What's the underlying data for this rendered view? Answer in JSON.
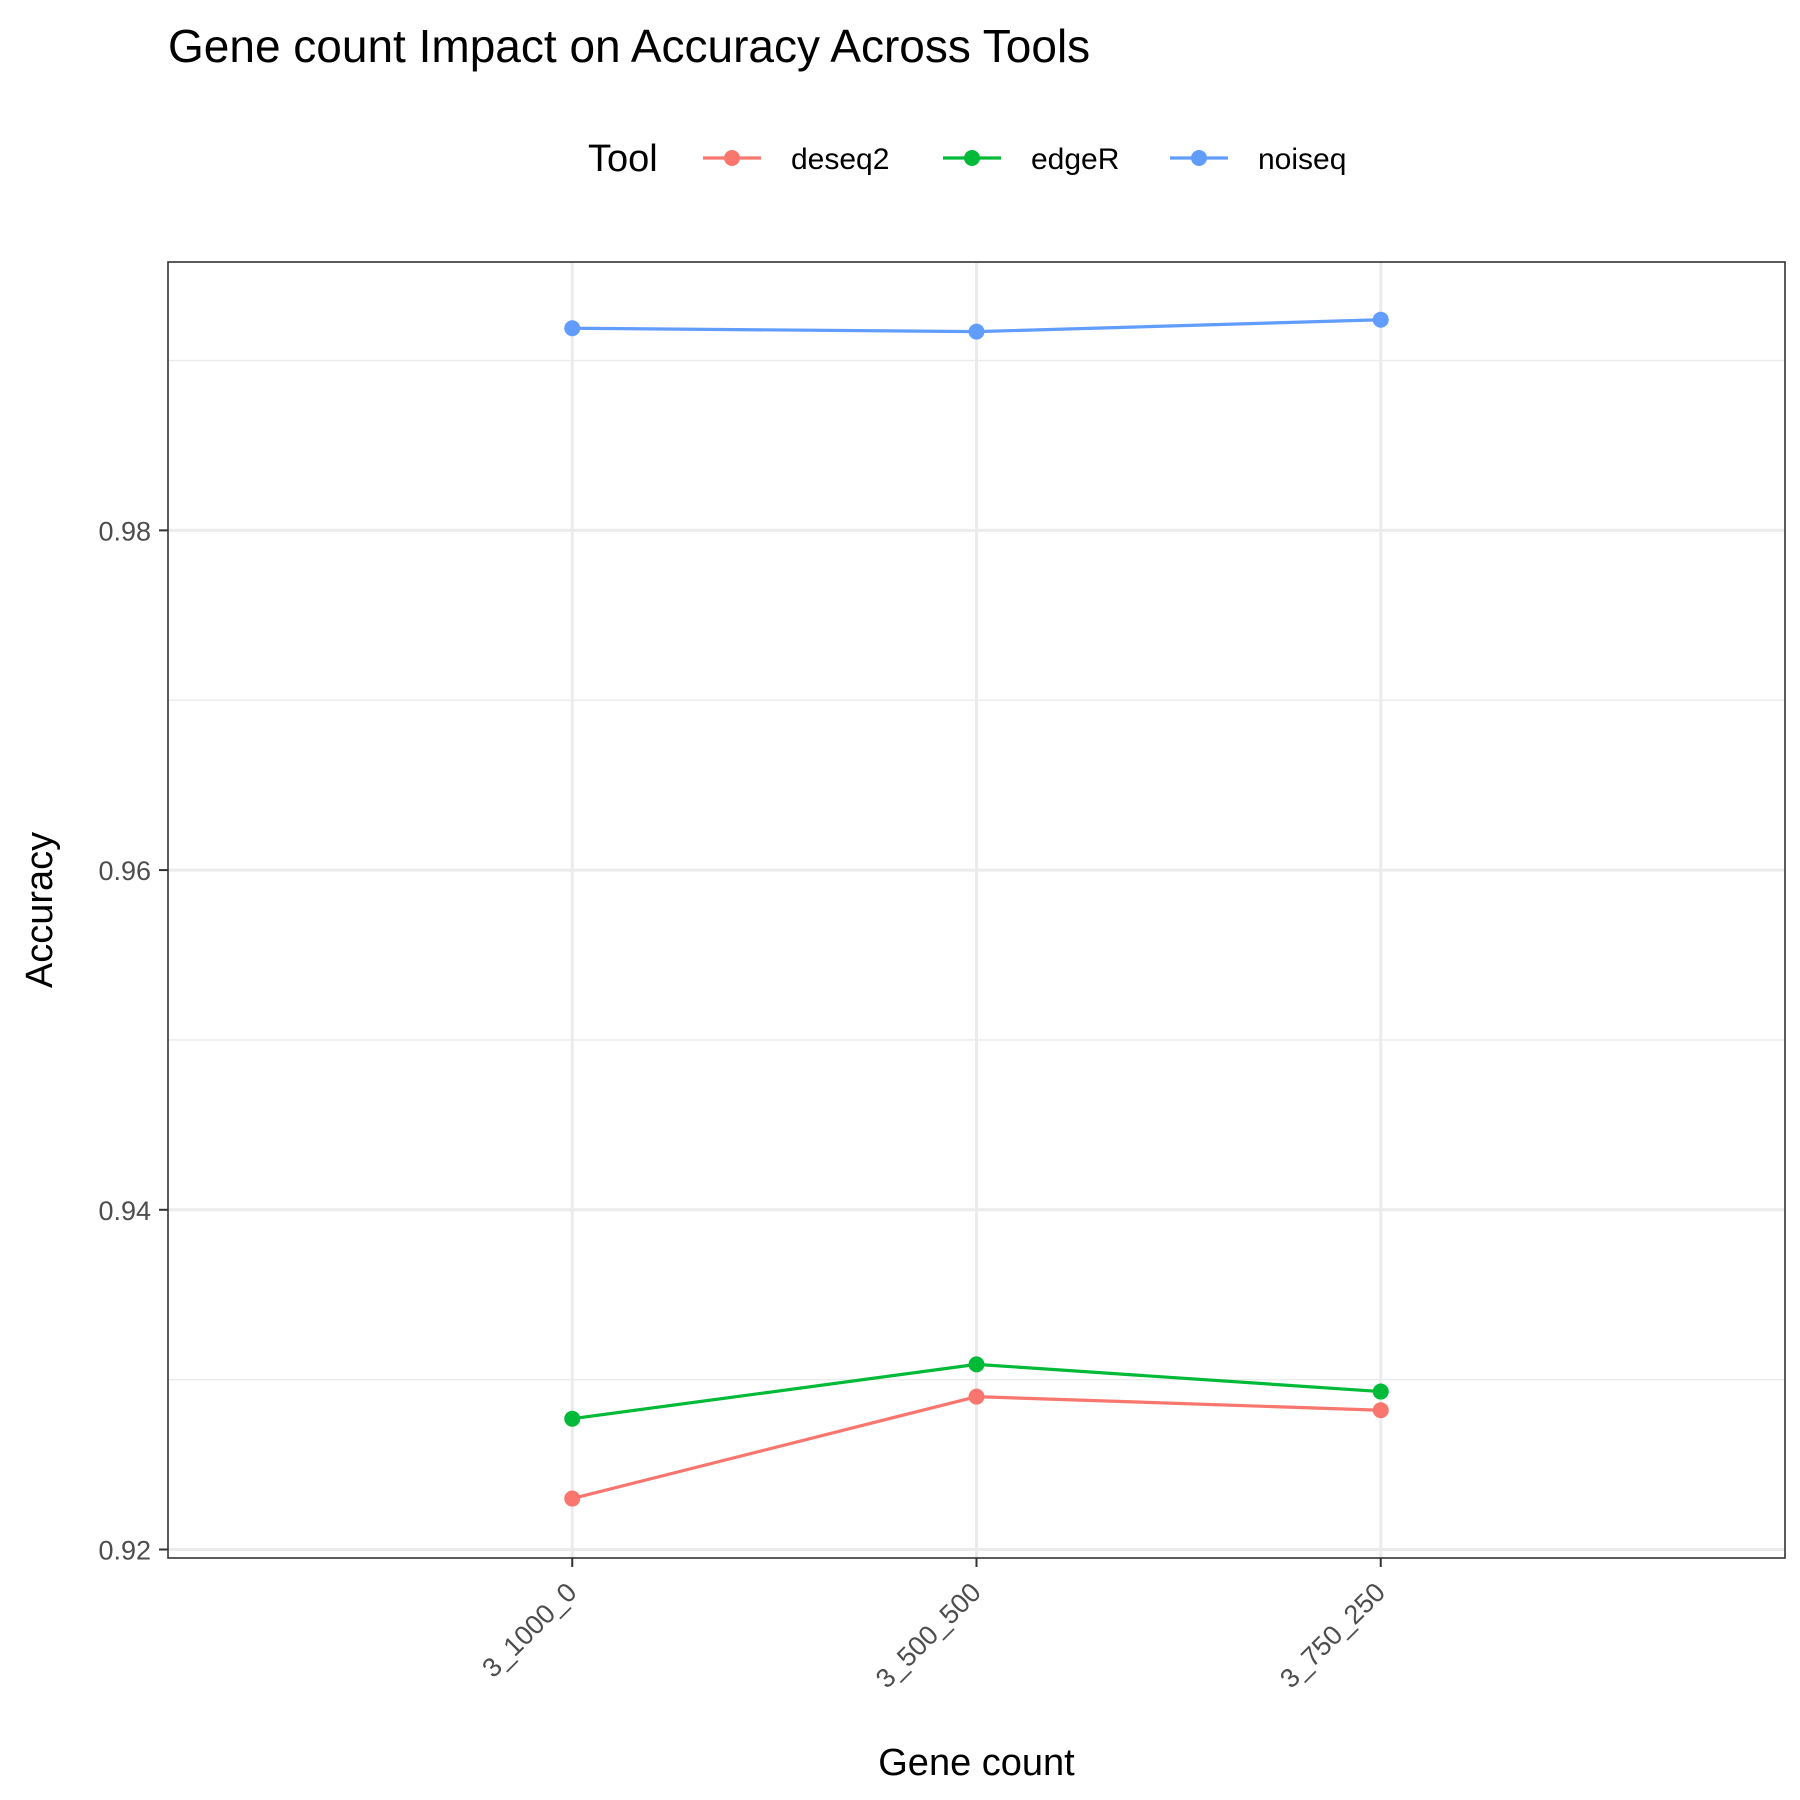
{
  "chart_data": {
    "type": "line",
    "title": "Gene count Impact on Accuracy Across Tools",
    "xlabel": "Gene count",
    "ylabel": "Accuracy",
    "categories": [
      "3_1000_0",
      "3_500_500",
      "3_750_250"
    ],
    "ylim": [
      0.9195,
      0.9958
    ],
    "yticks": [
      0.92,
      0.94,
      0.96,
      0.98
    ],
    "ytick_labels": [
      "0.92",
      "0.94",
      "0.96",
      "0.98"
    ],
    "legend_title": "Tool",
    "legend_position": "top",
    "grid": true,
    "series": [
      {
        "name": "deseq2",
        "color": "#F8766D",
        "values": [
          0.923,
          0.929,
          0.9282
        ]
      },
      {
        "name": "edgeR",
        "color": "#00BA38",
        "values": [
          0.9277,
          0.9309,
          0.9293
        ]
      },
      {
        "name": "noiseq",
        "color": "#619CFF",
        "values": [
          0.9919,
          0.9917,
          0.9924
        ]
      }
    ]
  }
}
